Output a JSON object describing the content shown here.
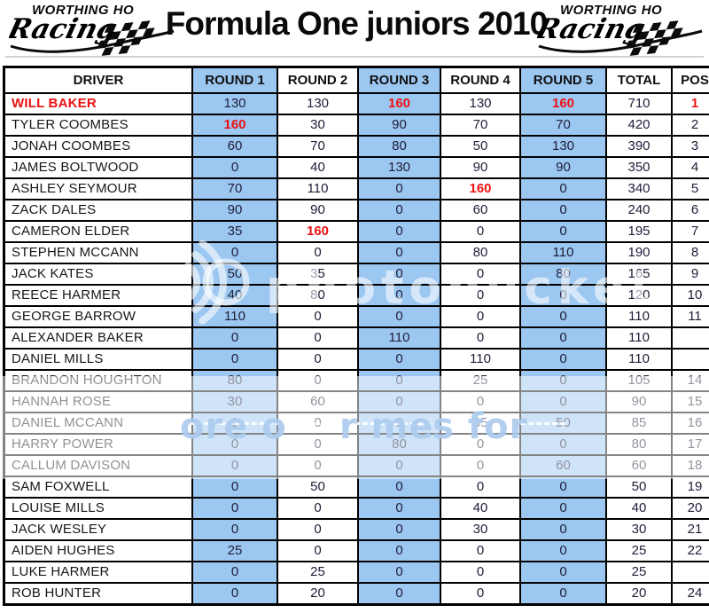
{
  "header": {
    "title": "Formula One juniors 2010",
    "left_logo": {
      "line1": "WORTHING HO",
      "line2": "Racing"
    },
    "right_logo": {
      "line1": "WORTHING HO",
      "line2": "Racing"
    }
  },
  "watermark": {
    "brand_text": "photobucket",
    "band_fragments": [
      "ore o",
      "r me",
      "s for"
    ]
  },
  "table": {
    "columns": [
      "DRIVER",
      "ROUND 1",
      "ROUND 2",
      "ROUND 3",
      "ROUND 4",
      "ROUND 5",
      "TOTAL",
      "POS"
    ],
    "blue_column_indexes": [
      1,
      3,
      5
    ],
    "colors": {
      "highlight_blue": "#9cc7f1",
      "win_red": "#ec1212"
    },
    "rows": [
      {
        "driver": "WILL BAKER",
        "rounds": [
          130,
          130,
          160,
          130,
          160
        ],
        "total": 710,
        "pos": "1",
        "driver_red": true,
        "pos_red": true,
        "red_rounds": [
          2,
          4
        ]
      },
      {
        "driver": "TYLER COOMBES",
        "rounds": [
          160,
          30,
          90,
          70,
          70
        ],
        "total": 420,
        "pos": "2",
        "red_rounds": [
          0
        ]
      },
      {
        "driver": "JONAH COOMBES",
        "rounds": [
          60,
          70,
          80,
          50,
          130
        ],
        "total": 390,
        "pos": "3"
      },
      {
        "driver": "JAMES BOLTWOOD",
        "rounds": [
          0,
          40,
          130,
          90,
          90
        ],
        "total": 350,
        "pos": "4"
      },
      {
        "driver": "ASHLEY SEYMOUR",
        "rounds": [
          70,
          110,
          0,
          160,
          0
        ],
        "total": 340,
        "pos": "5",
        "red_rounds": [
          3
        ]
      },
      {
        "driver": "ZACK DALES",
        "rounds": [
          90,
          90,
          0,
          60,
          0
        ],
        "total": 240,
        "pos": "6"
      },
      {
        "driver": "CAMERON ELDER",
        "rounds": [
          35,
          160,
          0,
          0,
          0
        ],
        "total": 195,
        "pos": "7",
        "red_rounds": [
          1
        ]
      },
      {
        "driver": "STEPHEN MCCANN",
        "rounds": [
          0,
          0,
          0,
          80,
          110
        ],
        "total": 190,
        "pos": "8"
      },
      {
        "driver": "JACK KATES",
        "rounds": [
          50,
          35,
          0,
          0,
          80
        ],
        "total": 165,
        "pos": "9"
      },
      {
        "driver": "REECE HARMER",
        "rounds": [
          40,
          80,
          0,
          0,
          0
        ],
        "total": 120,
        "pos": "10"
      },
      {
        "driver": "GEORGE BARROW",
        "rounds": [
          110,
          0,
          0,
          0,
          0
        ],
        "total": 110,
        "pos": "11"
      },
      {
        "driver": "ALEXANDER BAKER",
        "rounds": [
          0,
          0,
          110,
          0,
          0
        ],
        "total": 110,
        "pos": ""
      },
      {
        "driver": "DANIEL MILLS",
        "rounds": [
          0,
          0,
          0,
          110,
          0
        ],
        "total": 110,
        "pos": ""
      },
      {
        "driver": "BRANDON HOUGHTON",
        "rounds": [
          80,
          0,
          0,
          25,
          0
        ],
        "total": 105,
        "pos": "14"
      },
      {
        "driver": "HANNAH ROSE",
        "rounds": [
          30,
          60,
          0,
          0,
          0
        ],
        "total": 90,
        "pos": "15"
      },
      {
        "driver": "DANIEL MCCANN",
        "rounds": [
          0,
          0,
          0,
          35,
          50
        ],
        "total": 85,
        "pos": "16"
      },
      {
        "driver": "HARRY POWER",
        "rounds": [
          0,
          0,
          80,
          0,
          0
        ],
        "total": 80,
        "pos": "17"
      },
      {
        "driver": "CALLUM DAVISON",
        "rounds": [
          0,
          0,
          0,
          0,
          60
        ],
        "total": 60,
        "pos": "18"
      },
      {
        "driver": "SAM FOXWELL",
        "rounds": [
          0,
          50,
          0,
          0,
          0
        ],
        "total": 50,
        "pos": "19"
      },
      {
        "driver": "LOUISE MILLS",
        "rounds": [
          0,
          0,
          0,
          40,
          0
        ],
        "total": 40,
        "pos": "20"
      },
      {
        "driver": "JACK WESLEY",
        "rounds": [
          0,
          0,
          0,
          30,
          0
        ],
        "total": 30,
        "pos": "21"
      },
      {
        "driver": "AIDEN HUGHES",
        "rounds": [
          25,
          0,
          0,
          0,
          0
        ],
        "total": 25,
        "pos": "22"
      },
      {
        "driver": "LUKE HARMER",
        "rounds": [
          0,
          25,
          0,
          0,
          0
        ],
        "total": 25,
        "pos": ""
      },
      {
        "driver": "ROB HUNTER",
        "rounds": [
          0,
          20,
          0,
          0,
          0
        ],
        "total": 20,
        "pos": "24"
      }
    ]
  }
}
